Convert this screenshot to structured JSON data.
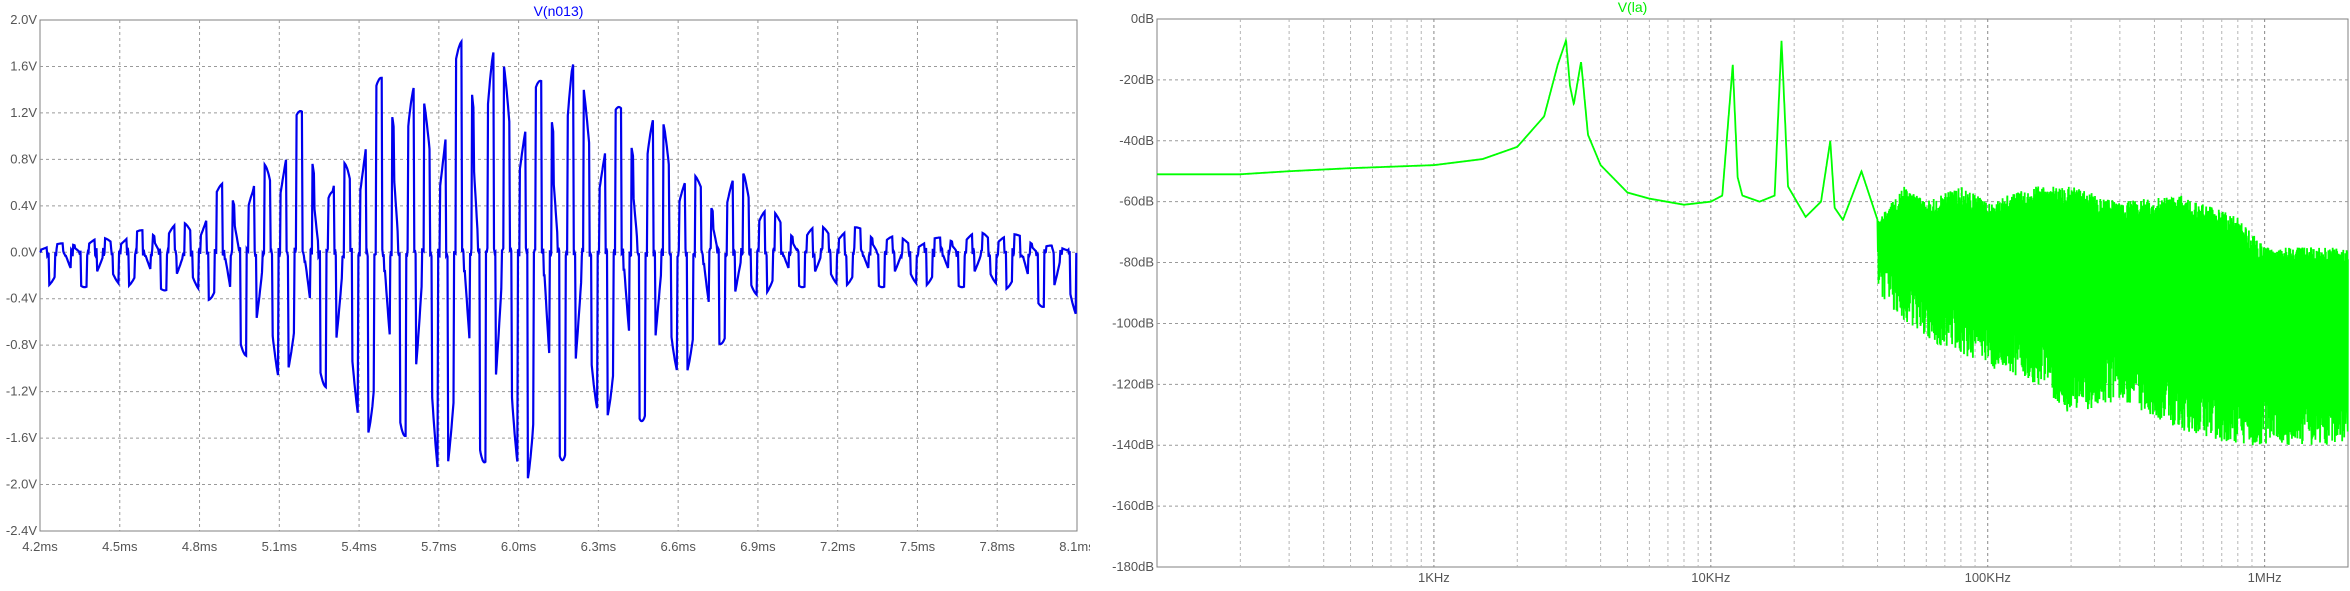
{
  "chart_data": [
    {
      "type": "line",
      "title": "V(n013)",
      "title_color": "#0000ff",
      "series": [
        {
          "name": "V(n013)",
          "color": "#0000ee",
          "description_values": {
            "x_ms": [
              4.2,
              4.5,
              4.8,
              4.9,
              5.0,
              5.1,
              5.2,
              5.3,
              5.45,
              5.55,
              5.7,
              5.8,
              5.9,
              6.05,
              6.2,
              6.3,
              6.45,
              6.55,
              6.7,
              6.85,
              6.9,
              7.0,
              7.2,
              7.5,
              7.8,
              8.1
            ],
            "envelope_pos_V": [
              0.05,
              0.15,
              0.3,
              0.65,
              0.6,
              1.1,
              1.25,
              0.6,
              1.4,
              1.75,
              1.2,
              1.95,
              1.9,
              1.4,
              1.8,
              1.2,
              1.3,
              1.2,
              0.5,
              0.75,
              0.6,
              0.2,
              0.25,
              0.1,
              0.2,
              0.0
            ],
            "envelope_neg_V": [
              -0.3,
              -0.3,
              -0.35,
              -0.6,
              -1.0,
              -1.2,
              -0.8,
              -1.3,
              -1.7,
              -1.5,
              -2.1,
              -1.6,
              -1.9,
              -2.1,
              -1.7,
              -1.5,
              -1.5,
              -1.2,
              -1.0,
              -0.5,
              -0.4,
              -0.3,
              -0.3,
              -0.3,
              -0.3,
              -0.6
            ]
          }
        }
      ],
      "x_ticks": [
        "4.2ms",
        "4.5ms",
        "4.8ms",
        "5.1ms",
        "5.4ms",
        "5.7ms",
        "6.0ms",
        "6.3ms",
        "6.6ms",
        "6.9ms",
        "7.2ms",
        "7.5ms",
        "7.8ms",
        "8.1ms"
      ],
      "y_ticks": [
        "2.0V",
        "1.6V",
        "1.2V",
        "0.8V",
        "0.4V",
        "0.0V",
        "-0.4V",
        "-0.8V",
        "-1.2V",
        "-1.6V",
        "-2.0V",
        "-2.4V"
      ],
      "xlim": [
        4.2,
        8.1
      ],
      "ylim": [
        -2.4,
        2.0
      ],
      "grid": true
    },
    {
      "type": "line",
      "title": "V(la)",
      "title_color": "#00ee00",
      "xscale": "log",
      "series": [
        {
          "name": "V(la)",
          "color": "#00ff00",
          "x_hz": [
            100,
            200,
            300,
            500,
            1000,
            1500,
            2000,
            2500,
            2800,
            3000,
            3100,
            3200,
            3400,
            3600,
            4000,
            5000,
            6000,
            8000,
            10000,
            11000,
            12000,
            12500,
            13000,
            15000,
            17000,
            18000,
            19000,
            22000,
            25000,
            27000,
            28000,
            30000,
            35000,
            40000,
            50000,
            60000,
            80000,
            100000,
            150000,
            200000,
            300000,
            500000,
            800000,
            1000000,
            1500000
          ],
          "y_db": [
            -51,
            -51,
            -50,
            -49,
            -48,
            -46,
            -42,
            -32,
            -15,
            -7,
            -22,
            -28,
            -14,
            -38,
            -48,
            -57,
            -59,
            -61,
            -60,
            -58,
            -15,
            -52,
            -58,
            -60,
            -58,
            -7,
            -55,
            -65,
            -60,
            -40,
            -62,
            -66,
            -50,
            -66,
            -55,
            -60,
            -55,
            -60,
            -55,
            -55,
            -60,
            -58,
            -65,
            -75,
            -75
          ],
          "lower_envelope_db": [
            -51,
            -51,
            -50,
            -49,
            -48,
            -46,
            -42,
            -32,
            -30,
            -28,
            -30,
            -30,
            -30,
            -40,
            -48,
            -57,
            -59,
            -61,
            -62,
            -60,
            -60,
            -58,
            -60,
            -62,
            -60,
            -58,
            -60,
            -72,
            -85,
            -80,
            -90,
            -95,
            -85,
            -90,
            -100,
            -105,
            -110,
            -115,
            -120,
            -130,
            -125,
            -135,
            -140,
            -140,
            -140
          ]
        }
      ],
      "x_ticks": [
        "1KHz",
        "10KHz",
        "100KHz",
        "1MHz"
      ],
      "y_ticks": [
        "0dB",
        "-20dB",
        "-40dB",
        "-60dB",
        "-80dB",
        "-100dB",
        "-120dB",
        "-140dB",
        "-160dB",
        "-180dB"
      ],
      "xlim": [
        100,
        2000000
      ],
      "ylim": [
        -180,
        0
      ],
      "grid": true
    }
  ]
}
